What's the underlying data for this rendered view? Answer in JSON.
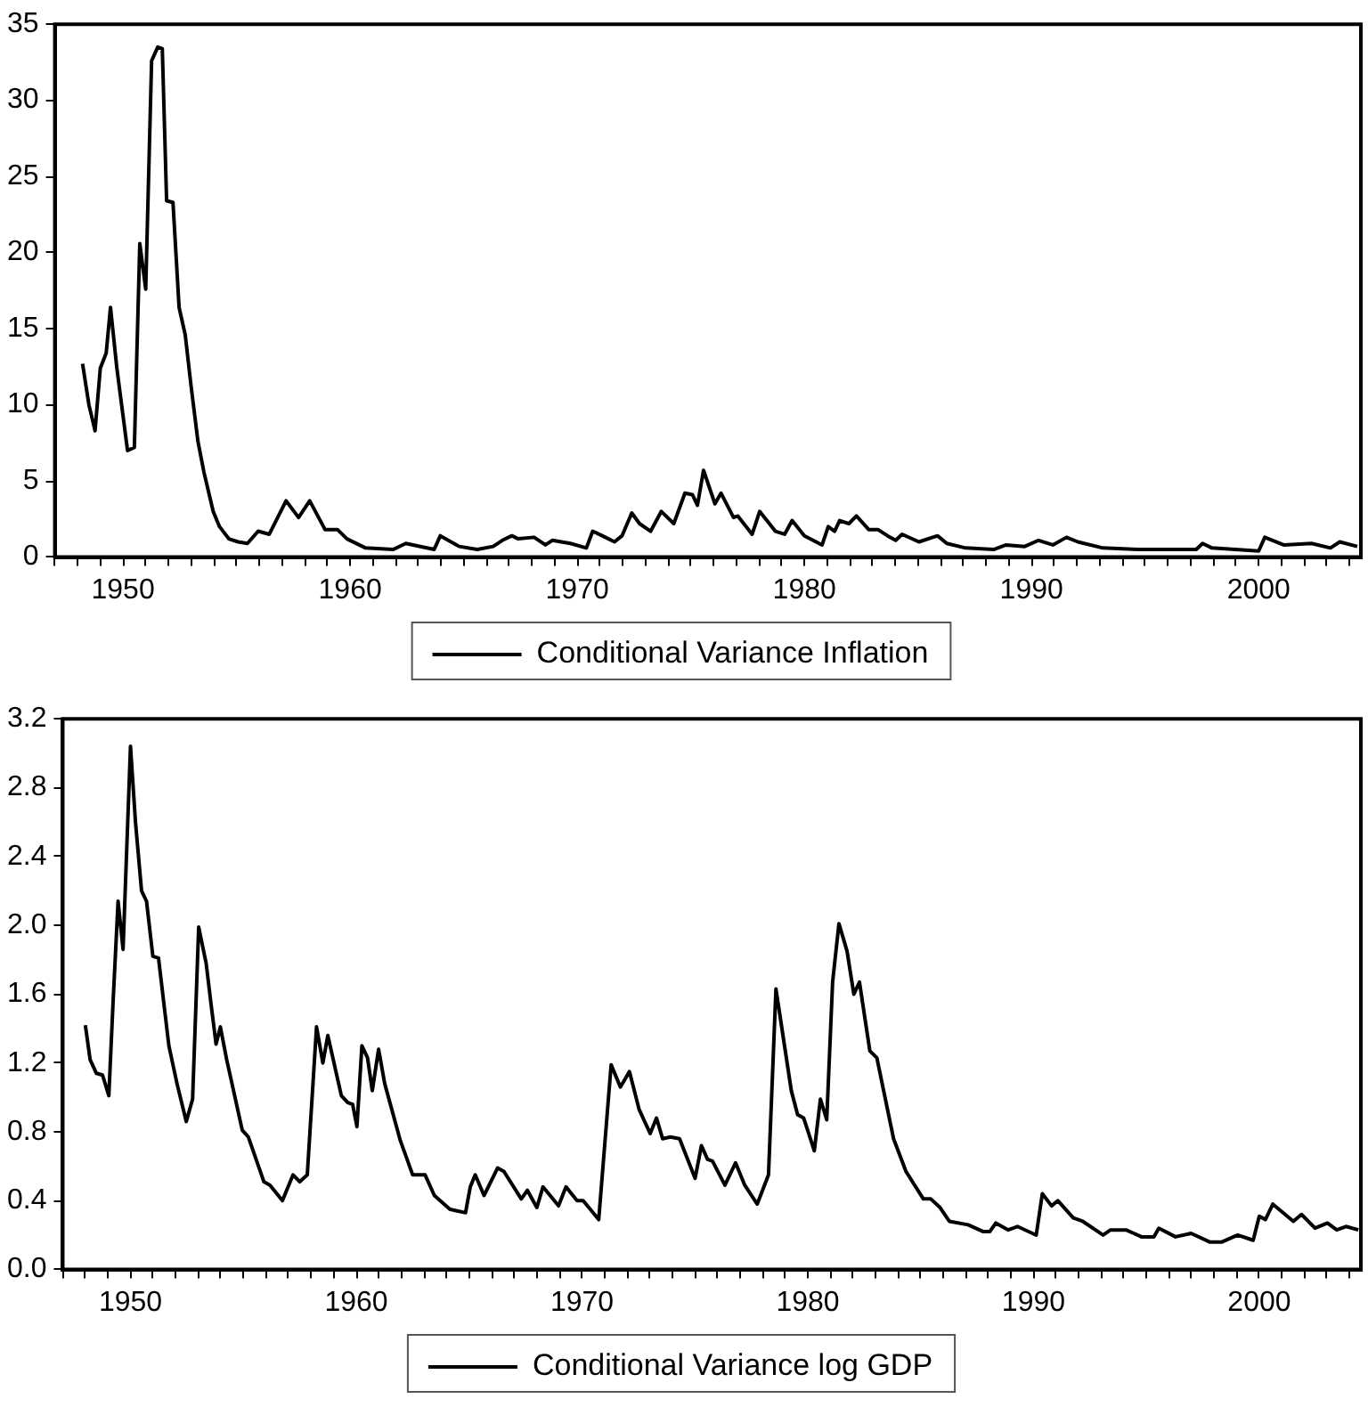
{
  "chart_data": [
    {
      "type": "line",
      "xlim": [
        1947,
        2004.5
      ],
      "ylim": [
        0,
        35
      ],
      "yticks": [
        0,
        5,
        10,
        15,
        20,
        25,
        30,
        35
      ],
      "xticks": [
        {
          "value": 1947,
          "label": null
        },
        {
          "value": 1948,
          "label": null
        },
        {
          "value": 1949,
          "label": null
        },
        1950,
        {
          "value": 1951,
          "label": null
        },
        {
          "value": 1952,
          "label": null
        },
        {
          "value": 1953,
          "label": null
        },
        {
          "value": 1954,
          "label": null
        },
        {
          "value": 1955,
          "label": null
        },
        {
          "value": 1956,
          "label": null
        },
        {
          "value": 1957,
          "label": null
        },
        {
          "value": 1958,
          "label": null
        },
        {
          "value": 1959,
          "label": null
        },
        1960,
        {
          "value": 1961,
          "label": null
        },
        {
          "value": 1962,
          "label": null
        },
        {
          "value": 1963,
          "label": null
        },
        {
          "value": 1964,
          "label": null
        },
        {
          "value": 1965,
          "label": null
        },
        {
          "value": 1966,
          "label": null
        },
        {
          "value": 1967,
          "label": null
        },
        {
          "value": 1968,
          "label": null
        },
        {
          "value": 1969,
          "label": null
        },
        1970,
        {
          "value": 1971,
          "label": null
        },
        {
          "value": 1972,
          "label": null
        },
        {
          "value": 1973,
          "label": null
        },
        {
          "value": 1974,
          "label": null
        },
        {
          "value": 1975,
          "label": null
        },
        {
          "value": 1976,
          "label": null
        },
        {
          "value": 1977,
          "label": null
        },
        {
          "value": 1978,
          "label": null
        },
        {
          "value": 1979,
          "label": null
        },
        1980,
        {
          "value": 1981,
          "label": null
        },
        {
          "value": 1982,
          "label": null
        },
        {
          "value": 1983,
          "label": null
        },
        {
          "value": 1984,
          "label": null
        },
        {
          "value": 1985,
          "label": null
        },
        {
          "value": 1986,
          "label": null
        },
        {
          "value": 1987,
          "label": null
        },
        {
          "value": 1988,
          "label": null
        },
        {
          "value": 1989,
          "label": null
        },
        1990,
        {
          "value": 1991,
          "label": null
        },
        {
          "value": 1992,
          "label": null
        },
        {
          "value": 1993,
          "label": null
        },
        {
          "value": 1994,
          "label": null
        },
        {
          "value": 1995,
          "label": null
        },
        {
          "value": 1996,
          "label": null
        },
        {
          "value": 1997,
          "label": null
        },
        {
          "value": 1998,
          "label": null
        },
        {
          "value": 1999,
          "label": null
        },
        2000,
        {
          "value": 2001,
          "label": null
        },
        {
          "value": 2002,
          "label": null
        },
        {
          "value": 2003,
          "label": null
        },
        {
          "value": 2004,
          "label": null
        }
      ],
      "legend": "bottom",
      "x": [
        1948.22,
        1948.5,
        1948.77,
        1949.0,
        1949.26,
        1949.45,
        1949.73,
        1950.2,
        1950.5,
        1950.74,
        1951.0,
        1951.26,
        1951.53,
        1951.73,
        1951.92,
        1952.2,
        1952.47,
        1952.74,
        1953.0,
        1953.3,
        1953.56,
        1953.97,
        1954.25,
        1954.66,
        1955.07,
        1955.48,
        1955.95,
        1956.44,
        1957.18,
        1957.73,
        1958.22,
        1958.9,
        1959.45,
        1959.86,
        1960.68,
        1961.9,
        1962.45,
        1963.7,
        1963.97,
        1964.8,
        1965.6,
        1966.3,
        1966.7,
        1967.12,
        1967.4,
        1968.1,
        1968.6,
        1968.9,
        1969.7,
        1970.4,
        1970.68,
        1971.1,
        1971.64,
        1971.97,
        1972.4,
        1972.74,
        1973.23,
        1973.7,
        1974.25,
        1974.74,
        1975.07,
        1975.29,
        1975.56,
        1976.06,
        1976.33,
        1976.88,
        1977.07,
        1977.7,
        1978.03,
        1978.72,
        1979.13,
        1979.46,
        1980.0,
        1980.78,
        1981.05,
        1981.33,
        1981.55,
        1981.96,
        1982.29,
        1982.84,
        1983.25,
        1983.66,
        1984.02,
        1984.3,
        1985.04,
        1985.86,
        1986.27,
        1987.1,
        1988.33,
        1988.88,
        1989.7,
        1990.31,
        1990.94,
        1991.54,
        1992.04,
        1993.14,
        1994.78,
        1996.43,
        1997.25,
        1997.53,
        1997.94,
        2000.0,
        2000.27,
        2001.1,
        2002.33,
        2003.16,
        2003.57,
        2004.34
      ],
      "series": [
        {
          "name": "Conditional Variance Inflation",
          "color": "#000000",
          "values": [
            12.7,
            10,
            8.3,
            12.4,
            13.4,
            16.4,
            12.4,
            7.0,
            7.2,
            20.6,
            17.6,
            32.6,
            33.5,
            33.4,
            23.4,
            23.3,
            16.4,
            14.6,
            11.2,
            7.6,
            5.6,
            3.0,
            2.0,
            1.2,
            1.0,
            0.9,
            1.7,
            1.5,
            3.7,
            2.6,
            3.7,
            1.8,
            1.8,
            1.2,
            0.6,
            0.5,
            0.9,
            0.5,
            1.4,
            0.7,
            0.5,
            0.7,
            1.1,
            1.4,
            1.2,
            1.3,
            0.8,
            1.1,
            0.9,
            0.6,
            1.7,
            1.4,
            1.0,
            1.4,
            2.9,
            2.2,
            1.7,
            3.0,
            2.2,
            4.2,
            4.1,
            3.4,
            5.7,
            3.5,
            4.2,
            2.6,
            2.7,
            1.5,
            3.0,
            1.7,
            1.5,
            2.4,
            1.4,
            0.8,
            2.0,
            1.7,
            2.4,
            2.2,
            2.7,
            1.8,
            1.8,
            1.4,
            1.1,
            1.5,
            1.0,
            1.4,
            0.9,
            0.6,
            0.5,
            0.8,
            0.7,
            1.1,
            0.8,
            1.3,
            1.0,
            0.6,
            0.5,
            0.5,
            0.5,
            0.9,
            0.6,
            0.4,
            1.3,
            0.8,
            0.9,
            0.6,
            1.0,
            0.7
          ]
        }
      ]
    },
    {
      "type": "line",
      "xlim": [
        1947,
        2004.5
      ],
      "ylim": [
        0,
        3.2
      ],
      "yticks": [
        {
          "value": 0,
          "label": "0.0"
        },
        0.4,
        0.8,
        1.2,
        1.6,
        {
          "value": 2,
          "label": "2.0"
        },
        2.4,
        2.8,
        3.2
      ],
      "xticks": [
        {
          "value": 1947,
          "label": null
        },
        {
          "value": 1948,
          "label": null
        },
        {
          "value": 1949,
          "label": null
        },
        1950,
        {
          "value": 1951,
          "label": null
        },
        {
          "value": 1952,
          "label": null
        },
        {
          "value": 1953,
          "label": null
        },
        {
          "value": 1954,
          "label": null
        },
        {
          "value": 1955,
          "label": null
        },
        {
          "value": 1956,
          "label": null
        },
        {
          "value": 1957,
          "label": null
        },
        {
          "value": 1958,
          "label": null
        },
        {
          "value": 1959,
          "label": null
        },
        1960,
        {
          "value": 1961,
          "label": null
        },
        {
          "value": 1962,
          "label": null
        },
        {
          "value": 1963,
          "label": null
        },
        {
          "value": 1964,
          "label": null
        },
        {
          "value": 1965,
          "label": null
        },
        {
          "value": 1966,
          "label": null
        },
        {
          "value": 1967,
          "label": null
        },
        {
          "value": 1968,
          "label": null
        },
        {
          "value": 1969,
          "label": null
        },
        1970,
        {
          "value": 1971,
          "label": null
        },
        {
          "value": 1972,
          "label": null
        },
        {
          "value": 1973,
          "label": null
        },
        {
          "value": 1974,
          "label": null
        },
        {
          "value": 1975,
          "label": null
        },
        {
          "value": 1976,
          "label": null
        },
        {
          "value": 1977,
          "label": null
        },
        {
          "value": 1978,
          "label": null
        },
        {
          "value": 1979,
          "label": null
        },
        1980,
        {
          "value": 1981,
          "label": null
        },
        {
          "value": 1982,
          "label": null
        },
        {
          "value": 1983,
          "label": null
        },
        {
          "value": 1984,
          "label": null
        },
        {
          "value": 1985,
          "label": null
        },
        {
          "value": 1986,
          "label": null
        },
        {
          "value": 1987,
          "label": null
        },
        {
          "value": 1988,
          "label": null
        },
        {
          "value": 1989,
          "label": null
        },
        1990,
        {
          "value": 1991,
          "label": null
        },
        {
          "value": 1992,
          "label": null
        },
        {
          "value": 1993,
          "label": null
        },
        {
          "value": 1994,
          "label": null
        },
        {
          "value": 1995,
          "label": null
        },
        {
          "value": 1996,
          "label": null
        },
        {
          "value": 1997,
          "label": null
        },
        {
          "value": 1998,
          "label": null
        },
        {
          "value": 1999,
          "label": null
        },
        2000,
        {
          "value": 2001,
          "label": null
        },
        {
          "value": 2002,
          "label": null
        },
        {
          "value": 2003,
          "label": null
        },
        {
          "value": 2004,
          "label": null
        }
      ],
      "legend": "bottom",
      "x": [
        1948.0,
        1948.21,
        1948.49,
        1948.76,
        1949.04,
        1949.23,
        1949.45,
        1949.67,
        1950.0,
        1950.22,
        1950.49,
        1950.71,
        1950.99,
        1951.24,
        1951.7,
        1952.06,
        1952.47,
        1952.75,
        1953.02,
        1953.35,
        1953.57,
        1953.79,
        1953.98,
        1954.26,
        1954.95,
        1955.22,
        1955.91,
        1956.18,
        1956.73,
        1957.2,
        1957.5,
        1957.83,
        1958.24,
        1958.52,
        1958.74,
        1959.34,
        1959.62,
        1959.84,
        1960.03,
        1960.25,
        1960.5,
        1960.71,
        1960.99,
        1961.26,
        1961.95,
        1962.5,
        1963.05,
        1963.46,
        1964.15,
        1964.84,
        1965.05,
        1965.27,
        1965.66,
        1966.26,
        1966.54,
        1967.31,
        1967.58,
        1968.0,
        1968.27,
        1968.96,
        1969.29,
        1969.78,
        1970.05,
        1970.74,
        1971.29,
        1971.7,
        1972.1,
        1972.53,
        1973.02,
        1973.3,
        1973.57,
        1973.91,
        1974.32,
        1975.01,
        1975.29,
        1975.56,
        1975.78,
        1976.33,
        1976.8,
        1977.21,
        1977.76,
        1978.26,
        1978.59,
        1979.27,
        1979.55,
        1979.82,
        1980.29,
        1980.56,
        1980.84,
        1981.1,
        1981.38,
        1981.74,
        1982.04,
        1982.29,
        1982.75,
        1983.06,
        1983.8,
        1984.35,
        1985.12,
        1985.45,
        1985.86,
        1986.27,
        1987.1,
        1987.78,
        1988.06,
        1988.33,
        1988.88,
        1989.29,
        1990.12,
        1990.39,
        1990.8,
        1991.08,
        1991.76,
        1992.18,
        1993.08,
        1993.41,
        1994.1,
        1994.78,
        1995.33,
        1995.55,
        1996.29,
        1996.98,
        1997.8,
        1998.35,
        1999.04,
        1999.73,
        2000.0,
        2000.27,
        2000.6,
        2001.51,
        2001.87,
        2002.47,
        2003.02,
        2003.43,
        2003.84,
        2004.39
      ],
      "series": [
        {
          "name": "Conditional Variance log GDP",
          "color": "#000000",
          "values": [
            1.42,
            1.22,
            1.14,
            1.13,
            1.01,
            1.56,
            2.14,
            1.86,
            3.04,
            2.6,
            2.2,
            2.14,
            1.82,
            1.81,
            1.3,
            1.08,
            0.86,
            0.99,
            1.99,
            1.78,
            1.54,
            1.31,
            1.41,
            1.22,
            0.81,
            0.77,
            0.51,
            0.49,
            0.4,
            0.55,
            0.51,
            0.55,
            1.41,
            1.2,
            1.36,
            1.01,
            0.97,
            0.96,
            0.83,
            1.3,
            1.23,
            1.04,
            1.28,
            1.08,
            0.75,
            0.55,
            0.55,
            0.43,
            0.35,
            0.33,
            0.48,
            0.55,
            0.43,
            0.59,
            0.57,
            0.41,
            0.46,
            0.36,
            0.48,
            0.37,
            0.48,
            0.4,
            0.4,
            0.29,
            1.19,
            1.06,
            1.15,
            0.93,
            0.79,
            0.88,
            0.76,
            0.77,
            0.76,
            0.53,
            0.72,
            0.64,
            0.63,
            0.49,
            0.62,
            0.49,
            0.38,
            0.55,
            1.63,
            1.04,
            0.9,
            0.88,
            0.69,
            0.99,
            0.87,
            1.67,
            2.01,
            1.85,
            1.6,
            1.67,
            1.27,
            1.23,
            0.76,
            0.57,
            0.41,
            0.41,
            0.36,
            0.28,
            0.26,
            0.22,
            0.22,
            0.27,
            0.23,
            0.25,
            0.2,
            0.44,
            0.37,
            0.4,
            0.3,
            0.28,
            0.2,
            0.23,
            0.23,
            0.19,
            0.19,
            0.24,
            0.19,
            0.21,
            0.16,
            0.16,
            0.2,
            0.17,
            0.31,
            0.29,
            0.38,
            0.28,
            0.32,
            0.24,
            0.27,
            0.23,
            0.25,
            0.23
          ]
        }
      ]
    }
  ]
}
